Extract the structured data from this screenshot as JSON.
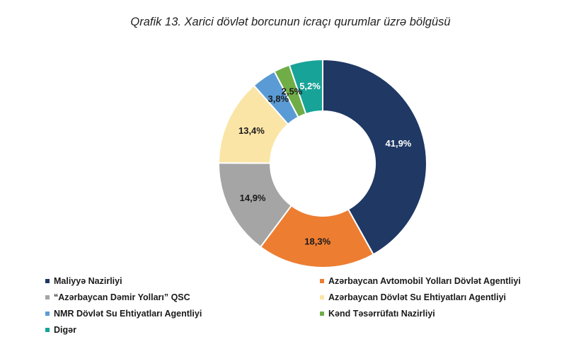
{
  "title": "Qrafik 13. Xarici dövlət borcunun icraçı qurumlar üzrə bölgüsü",
  "watermark": "",
  "chart_data": {
    "type": "pie",
    "variant": "donut",
    "title": "Qrafik 13. Xarici dövlət borcunun icraçı qurumlar üzrə bölgüsü",
    "slices": [
      {
        "label": "Maliyyə Nazirliyi",
        "value": 41.9,
        "display": "41,9%",
        "color": "#1f3864"
      },
      {
        "label": "Azərbaycan Avtomobil Yolları Dövlət Agentliyi",
        "value": 18.3,
        "display": "18,3%",
        "color": "#ed7d31"
      },
      {
        "label": "“Azərbaycan Dəmir Yolları” QSC",
        "value": 14.9,
        "display": "14,9%",
        "color": "#a5a5a5"
      },
      {
        "label": "Azərbaycan Dövlət Su Ehtiyatları Agentliyi",
        "value": 13.4,
        "display": "13,4%",
        "color": "#fbe5a6"
      },
      {
        "label": "NMR Dövlət Su Ehtiyatları Agentliyi",
        "value": 3.8,
        "display": "3,8%",
        "color": "#5b9bd5"
      },
      {
        "label": "Kənd Təsərrüfatı Nazirliyi",
        "value": 2.5,
        "display": "2,5%",
        "color": "#70ad47"
      },
      {
        "label": "Digər",
        "value": 5.2,
        "display": "5,2%",
        "color": "#17a398"
      }
    ],
    "legend_position": "bottom",
    "legend_order": [
      0,
      1,
      2,
      3,
      4,
      5,
      6
    ]
  }
}
